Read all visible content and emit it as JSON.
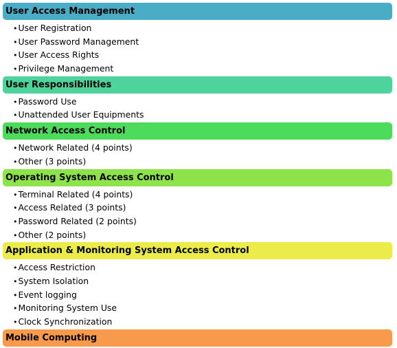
{
  "sections": [
    {
      "title": "User Access Management",
      "color": "#4bacc6",
      "items": [
        "User Registration",
        "User Password Management",
        "User Access Rights",
        "Privilege Management"
      ]
    },
    {
      "title": "User Responsibilities",
      "color": "#4fd39c",
      "items": [
        "Password Use",
        "Unattended  User Equipments"
      ]
    },
    {
      "title": "Network Access Control",
      "color": "#4cdb5a",
      "items": [
        "Network Related (4 points)",
        "Other (3 points)"
      ]
    },
    {
      "title": "Operating System Access Control",
      "color": "#8ee34a",
      "items": [
        "Terminal Related (4 points)",
        "Access Related (3 points)",
        "Password Related (2 points)",
        "Other (2 points)"
      ]
    },
    {
      "title": "Application & Monitoring System Access Control",
      "color": "#ebeb4a",
      "items": [
        "Access Restriction",
        "System Isolation",
        "Event logging",
        "Monitoring System Use",
        "Clock Synchronization"
      ]
    },
    {
      "title": "Mobile Computing",
      "color": "#f79a4c",
      "items": []
    }
  ]
}
